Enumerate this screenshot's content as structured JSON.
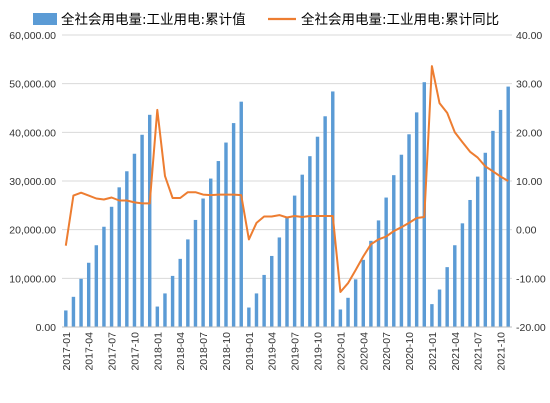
{
  "chart_data": {
    "type": "bar",
    "title": "",
    "legend": {
      "placement": "top"
    },
    "grid": {
      "y": true,
      "x": false
    },
    "left_axis": {
      "ylim": [
        0,
        60000
      ],
      "ticks": [
        "0.00",
        "10,000.00",
        "20,000.00",
        "30,000.00",
        "40,000.00",
        "50,000.00",
        "60,000.00"
      ]
    },
    "right_axis": {
      "ylim": [
        -20,
        40
      ],
      "ticks": [
        "-20.00",
        "-10.00",
        "0.00",
        "10.00",
        "20.00",
        "30.00",
        "40.00"
      ]
    },
    "x_tick_labels": [
      "2017-01",
      "2017-04",
      "2017-07",
      "2017-10",
      "2018-01",
      "2018-04",
      "2018-07",
      "2018-10",
      "2019-01",
      "2019-04",
      "2019-07",
      "2019-10",
      "2020-01",
      "2020-04",
      "2020-07",
      "2020-10",
      "2021-01",
      "2021-04",
      "2021-07",
      "2021-10"
    ],
    "categories": [
      "2017-01",
      "2017-02",
      "2017-03",
      "2017-04",
      "2017-05",
      "2017-06",
      "2017-07",
      "2017-08",
      "2017-09",
      "2017-10",
      "2017-11",
      "2017-12",
      "2018-01",
      "2018-02",
      "2018-03",
      "2018-04",
      "2018-05",
      "2018-06",
      "2018-07",
      "2018-08",
      "2018-09",
      "2018-10",
      "2018-11",
      "2018-12",
      "2019-01",
      "2019-02",
      "2019-03",
      "2019-04",
      "2019-05",
      "2019-06",
      "2019-07",
      "2019-08",
      "2019-09",
      "2019-10",
      "2019-11",
      "2019-12",
      "2020-01",
      "2020-02",
      "2020-03",
      "2020-04",
      "2020-05",
      "2020-06",
      "2020-07",
      "2020-08",
      "2020-09",
      "2020-10",
      "2020-11",
      "2020-12",
      "2021-01",
      "2021-02",
      "2021-03",
      "2021-04",
      "2021-05",
      "2021-06",
      "2021-07",
      "2021-08",
      "2021-09",
      "2021-10",
      "2021-11"
    ],
    "series": [
      {
        "name": "全社会用电量:工业用电:累计值",
        "type": "bar",
        "axis": "left",
        "color": "#5B9BD5",
        "values": [
          3400,
          6200,
          9900,
          13200,
          16800,
          20600,
          24700,
          28700,
          32000,
          35600,
          39500,
          43600,
          4200,
          6900,
          10500,
          14000,
          18000,
          22000,
          26400,
          30500,
          34100,
          37900,
          41900,
          46300,
          4000,
          6900,
          10700,
          14600,
          18400,
          22600,
          27000,
          31300,
          35100,
          39100,
          43300,
          48400,
          3600,
          6000,
          9800,
          13800,
          17700,
          21900,
          26600,
          31200,
          35400,
          39600,
          44100,
          50300,
          4700,
          7700,
          12300,
          16800,
          21300,
          26100,
          30900,
          35800,
          40300,
          44600,
          49400
        ]
      },
      {
        "name": "全社会用电量:工业用电:累计同比",
        "type": "line",
        "axis": "right",
        "color": "#ED7D31",
        "values": [
          -3.3,
          7.0,
          7.6,
          7.0,
          6.4,
          6.2,
          6.6,
          6.0,
          6.0,
          5.6,
          5.4,
          5.4,
          24.6,
          11.0,
          6.5,
          6.5,
          7.7,
          7.7,
          7.2,
          7.1,
          7.2,
          7.2,
          7.2,
          7.1,
          -2.0,
          1.4,
          2.7,
          2.7,
          3.0,
          2.5,
          2.8,
          2.6,
          2.8,
          2.8,
          2.8,
          2.8,
          -12.8,
          -11.0,
          -8.3,
          -5.5,
          -3.0,
          -2.0,
          -1.4,
          -0.3,
          0.5,
          1.4,
          2.4,
          2.6,
          33.6,
          26.0,
          24.0,
          20.0,
          18.0,
          16.0,
          14.8,
          13.0,
          12.0,
          10.9,
          10.0
        ]
      }
    ]
  }
}
